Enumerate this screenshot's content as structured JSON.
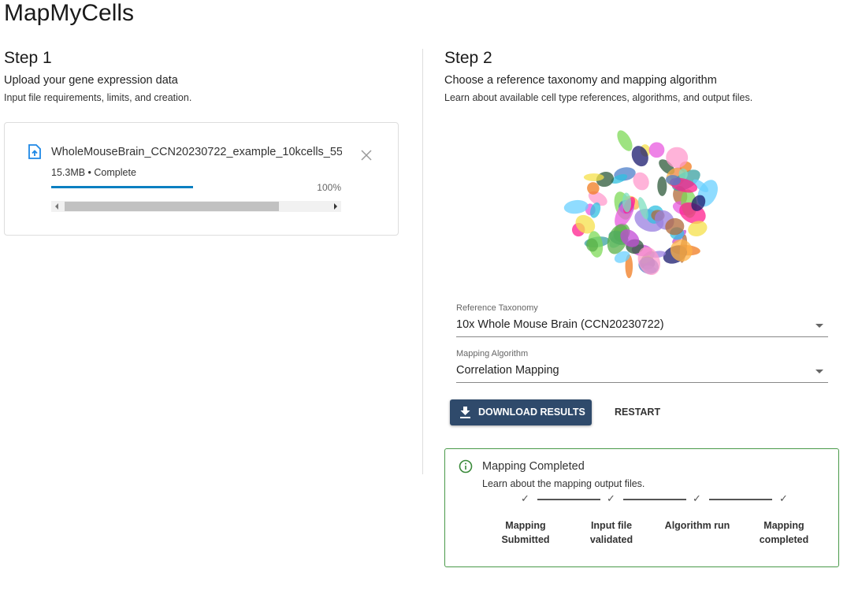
{
  "header": {
    "title": "MapMyCells"
  },
  "step1": {
    "title": "Step 1",
    "subtitle": "Upload your gene expression data",
    "link": "Input file requirements, limits, and creation.",
    "upload": {
      "file_name": "WholeMouseBrain_CCN20230722_example_10kcells_55",
      "status": "15.3MB • Complete",
      "progress": "100%"
    }
  },
  "step2": {
    "title": "Step 2",
    "subtitle": "Choose a reference taxonomy and mapping algorithm",
    "link": "Learn about available cell type references, algorithms, and output files.",
    "reference_taxonomy": {
      "label": "Reference Taxonomy",
      "value": "10x Whole Mouse Brain (CCN20230722)"
    },
    "mapping_algorithm": {
      "label": "Mapping Algorithm",
      "value": "Correlation Mapping"
    },
    "buttons": {
      "download": "DOWNLOAD RESULTS",
      "restart": "RESTART"
    },
    "status": {
      "title": "Mapping Completed",
      "link": "Learn about the mapping output files.",
      "steps": [
        "Mapping Submitted",
        "Input file validated",
        "Algorithm run",
        "Mapping completed"
      ]
    }
  }
}
